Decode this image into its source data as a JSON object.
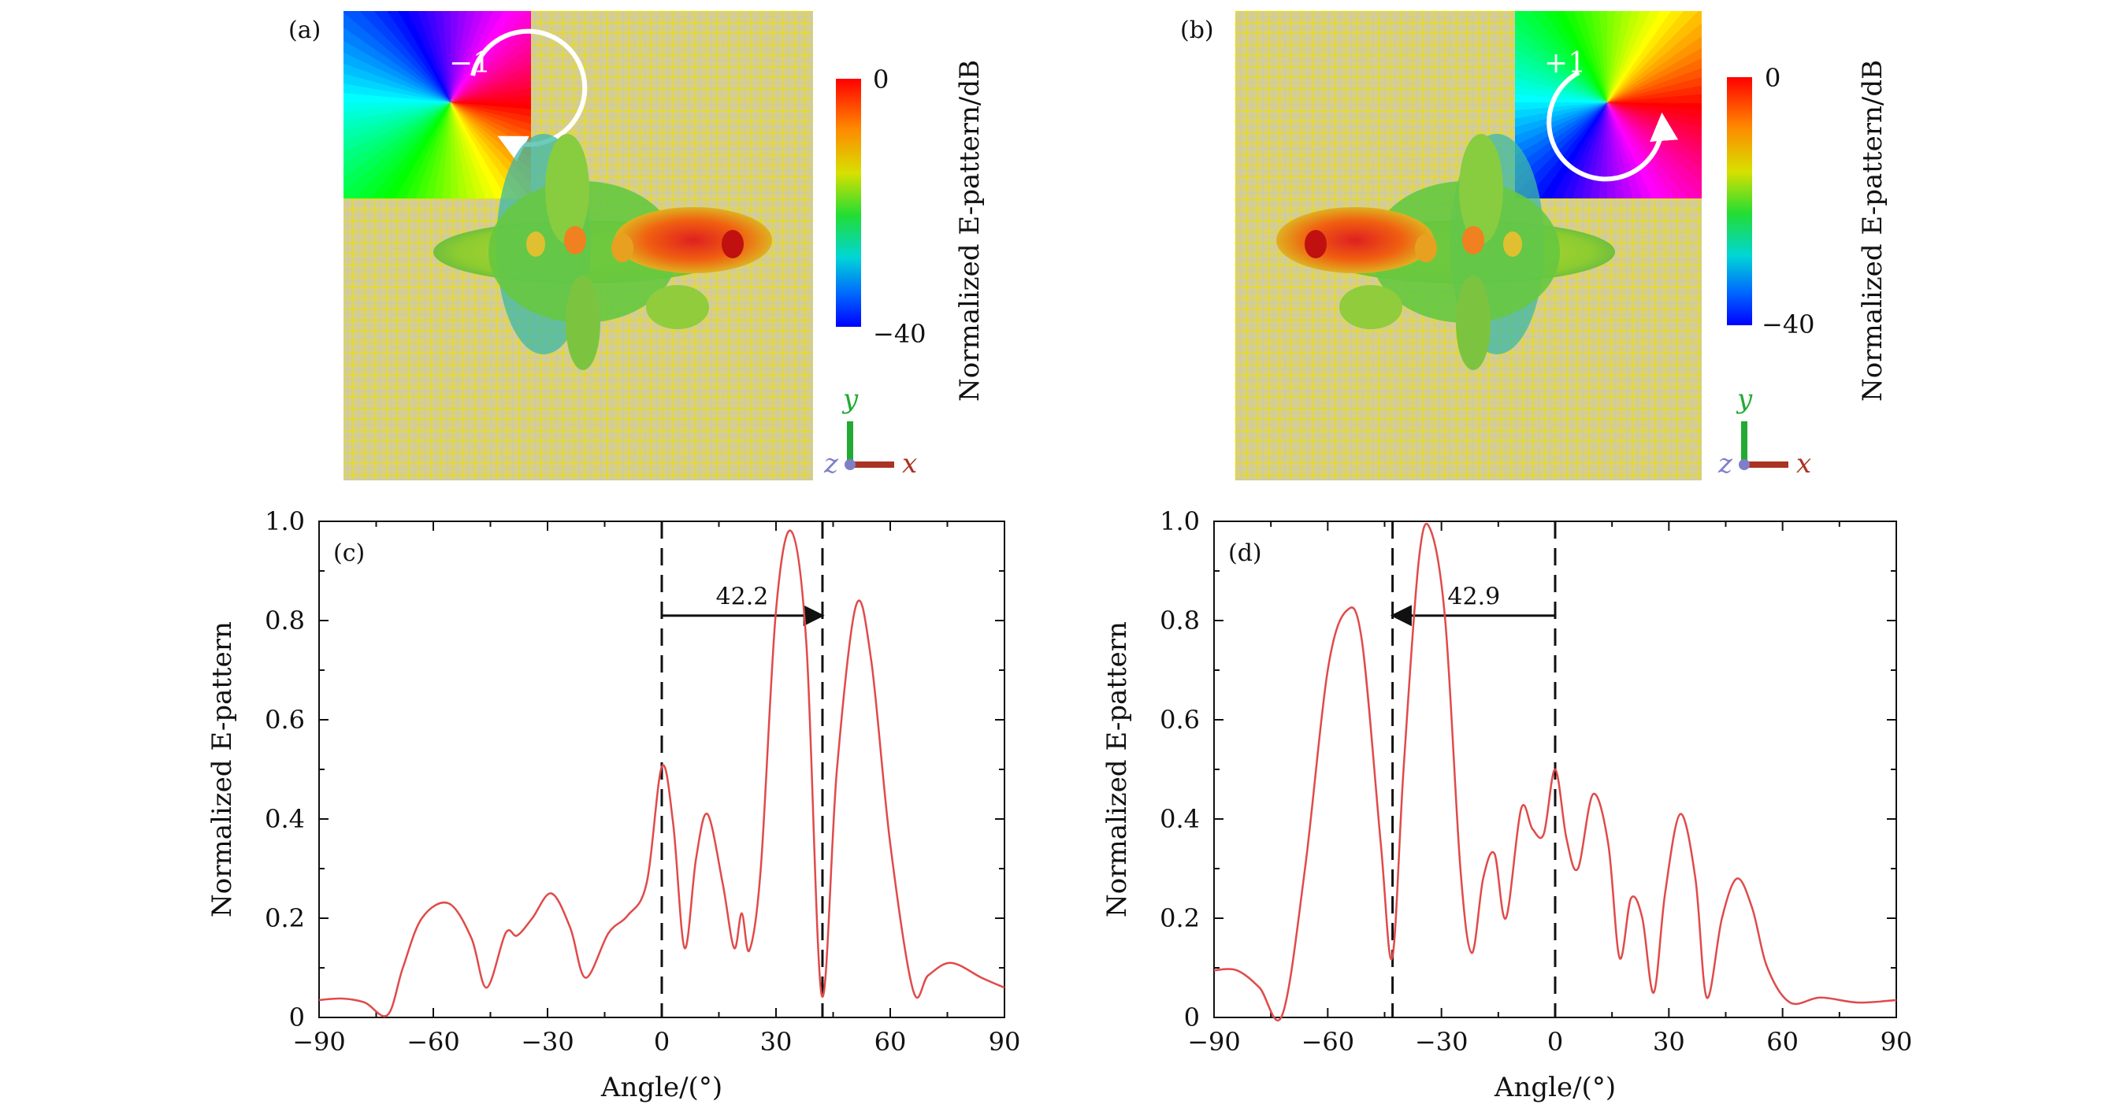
{
  "panels": {
    "a": {
      "label": "(a)",
      "charge": "−1",
      "cb_max": "0",
      "cb_min": "−40",
      "cb_title": "Normalized E-pattern/dB"
    },
    "b": {
      "label": "(b)",
      "charge": "+1",
      "cb_max": "0",
      "cb_min": "−40",
      "cb_title": "Normalized E-pattern/dB"
    }
  },
  "axes_triad": {
    "x": "x",
    "y": "y",
    "z": "z"
  },
  "colors": {
    "curve": "#e04a4a",
    "grid_bg": "#d9cf7a",
    "arrow": "#111111"
  },
  "chart_data": [
    {
      "type": "line",
      "panel_label": "(c)",
      "xlabel": "Angle/(°)",
      "ylabel": "Normalized E-pattern",
      "xlim": [
        -90,
        90
      ],
      "ylim": [
        0,
        1.0
      ],
      "xticks": [
        "−90",
        "−60",
        "−30",
        "0",
        "30",
        "60",
        "90"
      ],
      "yticks": [
        "0",
        "0.2",
        "0.4",
        "0.6",
        "0.8",
        "1.0"
      ],
      "vlines": [
        0,
        42.2
      ],
      "arrow": {
        "from": 0,
        "to": 42.2,
        "y": 0.81,
        "label": "42.2"
      },
      "x": [
        -90,
        -84,
        -78,
        -72,
        -68,
        -63,
        -56,
        -50,
        -46,
        -41,
        -38,
        -34,
        -29,
        -24,
        -20,
        -14,
        -9,
        -4,
        0,
        3,
        6,
        9,
        12,
        16,
        19,
        21,
        23,
        26,
        30,
        34,
        38,
        42,
        46,
        51,
        55,
        60,
        66,
        70,
        76,
        84,
        90
      ],
      "y": [
        0.035,
        0.038,
        0.03,
        0.005,
        0.1,
        0.2,
        0.23,
        0.16,
        0.06,
        0.17,
        0.165,
        0.2,
        0.25,
        0.18,
        0.08,
        0.17,
        0.205,
        0.27,
        0.505,
        0.39,
        0.14,
        0.32,
        0.41,
        0.27,
        0.14,
        0.21,
        0.135,
        0.3,
        0.82,
        0.98,
        0.75,
        0.045,
        0.5,
        0.83,
        0.72,
        0.35,
        0.055,
        0.085,
        0.11,
        0.08,
        0.06
      ]
    },
    {
      "type": "line",
      "panel_label": "(d)",
      "xlabel": "Angle/(°)",
      "ylabel": "Normalized E-pattern",
      "xlim": [
        -90,
        90
      ],
      "ylim": [
        0,
        1.0
      ],
      "xticks": [
        "−90",
        "−60",
        "−30",
        "0",
        "30",
        "60",
        "90"
      ],
      "yticks": [
        "0",
        "0.2",
        "0.4",
        "0.6",
        "0.8",
        "1.0"
      ],
      "vlines": [
        -42.9,
        0
      ],
      "arrow": {
        "from": 0,
        "to": -42.9,
        "y": 0.81,
        "label": "42.9"
      },
      "x": [
        -90,
        -84,
        -78,
        -72,
        -66,
        -60,
        -55,
        -51,
        -46,
        -43,
        -40,
        -36,
        -33,
        -29,
        -25,
        -22,
        -19,
        -16,
        -13,
        -9,
        -6,
        -3,
        0,
        3,
        6,
        10,
        14,
        17,
        20,
        23,
        26,
        29,
        33,
        37,
        40,
        44,
        48,
        52,
        56,
        62,
        70,
        80,
        90
      ],
      "y": [
        0.095,
        0.095,
        0.06,
        0.005,
        0.3,
        0.7,
        0.82,
        0.76,
        0.35,
        0.12,
        0.5,
        0.92,
        0.985,
        0.8,
        0.3,
        0.13,
        0.28,
        0.33,
        0.2,
        0.42,
        0.38,
        0.37,
        0.5,
        0.36,
        0.3,
        0.45,
        0.35,
        0.12,
        0.24,
        0.2,
        0.05,
        0.25,
        0.41,
        0.28,
        0.04,
        0.2,
        0.28,
        0.22,
        0.1,
        0.03,
        0.04,
        0.03,
        0.035
      ]
    }
  ]
}
